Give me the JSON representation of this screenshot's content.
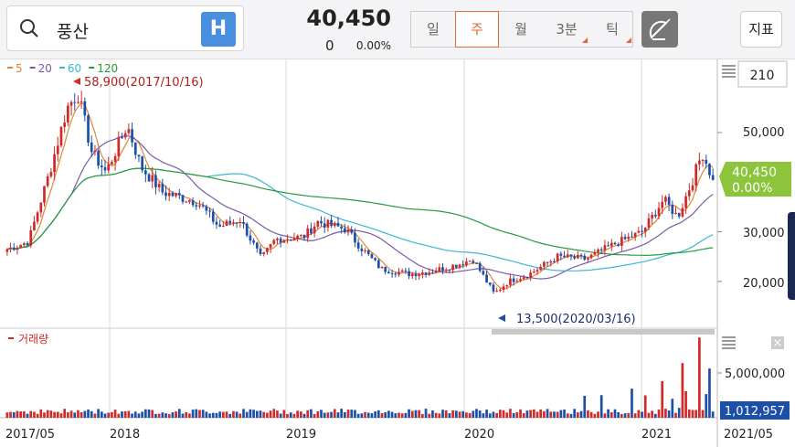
{
  "header": {
    "stock_name": "풍산",
    "h_label": "H",
    "price": "40,450",
    "change": "0",
    "change_pct": "0.00%",
    "periods": [
      {
        "label": "일",
        "active": false,
        "tri": false
      },
      {
        "label": "주",
        "active": true,
        "tri": false
      },
      {
        "label": "월",
        "active": false,
        "tri": false
      },
      {
        "label": "3분",
        "active": false,
        "tri": true
      },
      {
        "label": "틱",
        "active": false,
        "tri": true
      }
    ],
    "indicator_label": "지표"
  },
  "chart": {
    "ma_legend": [
      {
        "label": "5",
        "color": "#e0863a"
      },
      {
        "label": "20",
        "color": "#7b5aa6"
      },
      {
        "label": "60",
        "color": "#39b7d0"
      },
      {
        "label": "120",
        "color": "#2a9a3a"
      }
    ],
    "count_box": "210",
    "high_annotation": "58,900(2017/10/16)",
    "low_annotation": "13,500(2020/03/16)",
    "price_ticks": [
      "50,000",
      "30,000",
      "20,000"
    ],
    "current_price_label": "40,450",
    "current_pct_label": "0.00%",
    "volume_label": "거래량",
    "volume_tick": "5,000,000",
    "current_volume_label": "1,012,957",
    "x_labels": [
      "2017/05",
      "2018",
      "2019",
      "2020",
      "2021",
      "2021/05"
    ],
    "colors": {
      "up": "#d02a2a",
      "down": "#1c4fa8",
      "accent": "#e06a3a",
      "current_price_bg": "#8cc43c",
      "current_volume_bg": "#1c4fa8"
    }
  }
}
